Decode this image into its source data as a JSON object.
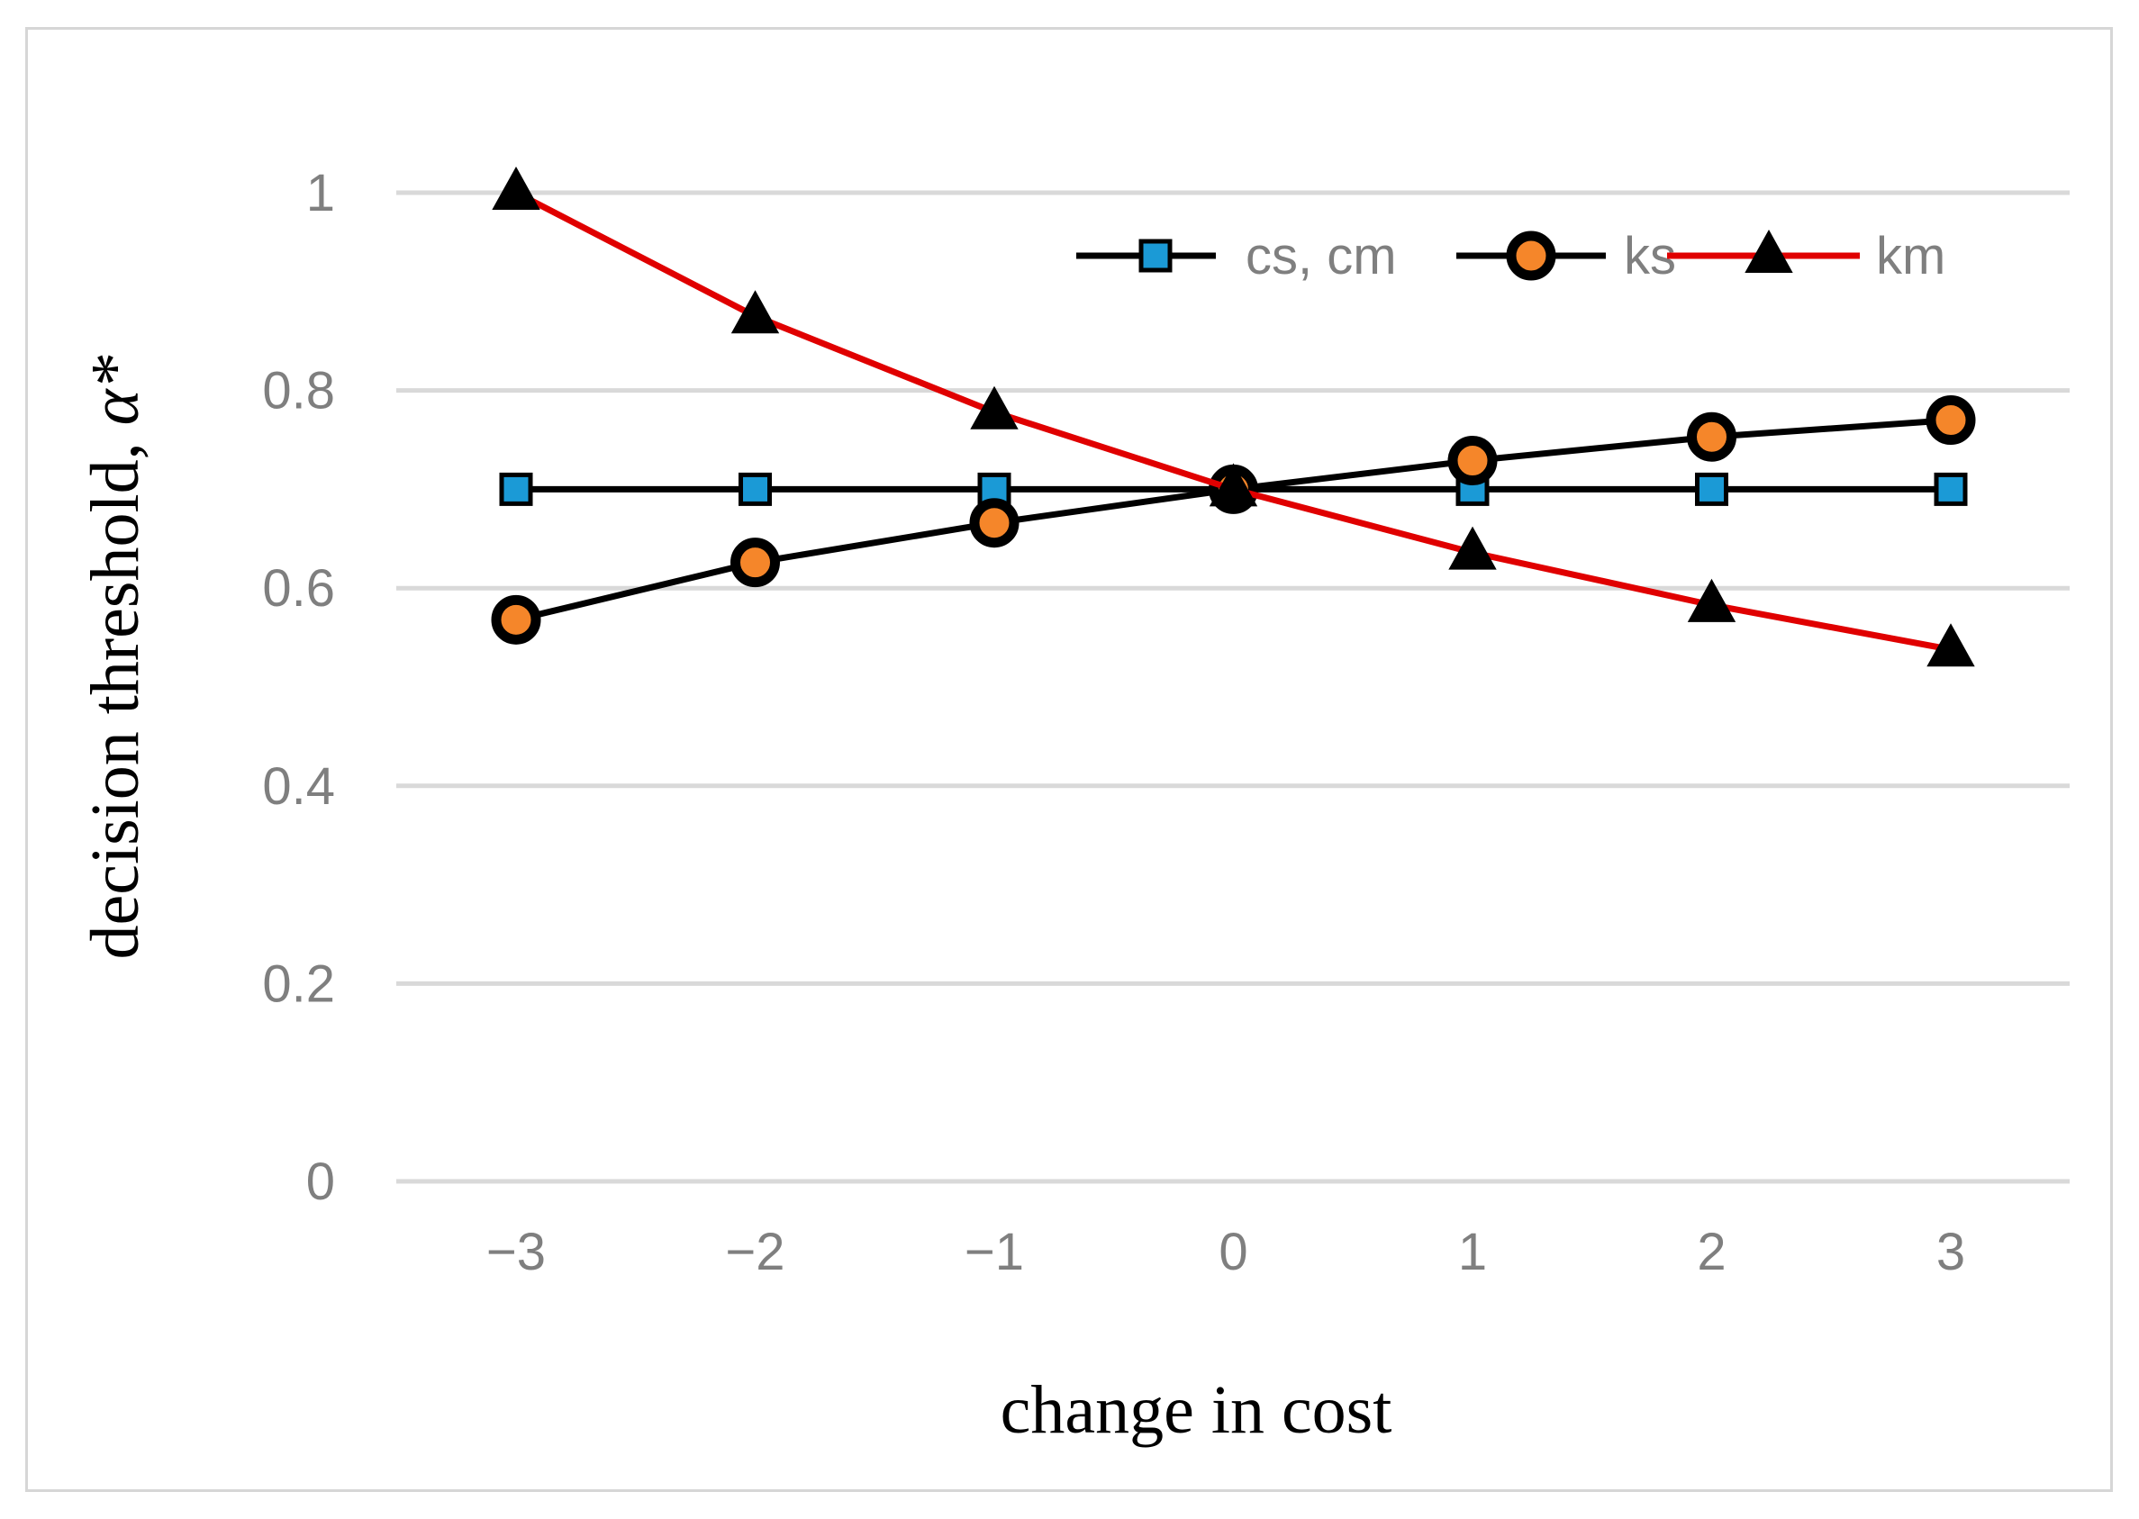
{
  "chart_data": {
    "type": "line",
    "title": "",
    "xlabel": "change in cost",
    "ylabel_prefix": "decision threshold, ",
    "ylabel_symbol": "α*",
    "x": [
      -3,
      -2,
      -1,
      0,
      1,
      2,
      3
    ],
    "x_tick_labels": [
      "−3",
      "−2",
      "−1",
      "0",
      "1",
      "2",
      "3"
    ],
    "y_ticks": [
      0,
      0.2,
      0.4,
      0.6,
      0.8,
      1
    ],
    "y_tick_labels": [
      "0",
      "0.2",
      "0.4",
      "0.6",
      "0.8",
      "1"
    ],
    "ylim": [
      0,
      1
    ],
    "grid": true,
    "legend_position": "top-right",
    "series": [
      {
        "name": "cs, cm",
        "values": [
          0.7,
          0.7,
          0.7,
          0.7,
          0.7,
          0.7,
          0.7
        ],
        "line_color": "#000000",
        "marker": "square",
        "marker_fill": "#1b9ad6"
      },
      {
        "name": "ks",
        "values": [
          0.568,
          0.626,
          0.666,
          0.7,
          0.729,
          0.753,
          0.77
        ],
        "line_color": "#000000",
        "marker": "circle",
        "marker_fill": "#f5862a"
      },
      {
        "name": "km",
        "values": [
          1.0,
          0.875,
          0.778,
          0.7,
          0.636,
          0.583,
          0.538
        ],
        "line_color": "#e00000",
        "marker": "triangle",
        "marker_fill": "#000000"
      }
    ]
  }
}
